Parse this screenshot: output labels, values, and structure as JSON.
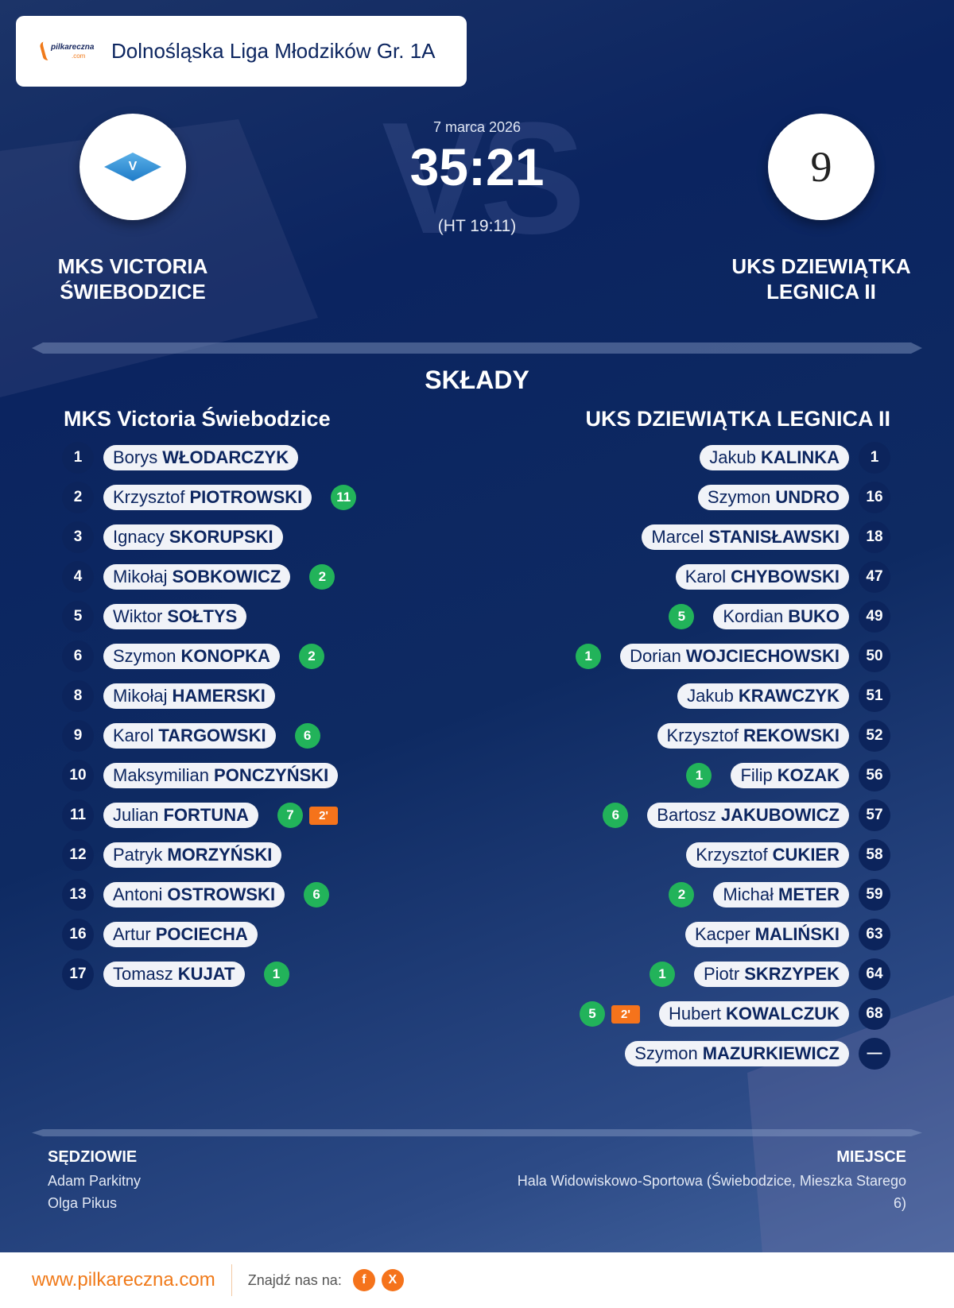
{
  "header": {
    "league": "Dolnośląska Liga Młodzików Gr. 1A",
    "logo_text": "pilkareczna",
    "logo_sub": ".com"
  },
  "match": {
    "date": "7 marca 2026",
    "score": "35:21",
    "halftime": "(HT 19:11)",
    "vs_watermark": "VS",
    "home": {
      "name_line1": "MKS VICTORIA",
      "name_line2": "ŚWIEBODZICE",
      "crest_letter": "V"
    },
    "away": {
      "name_line1": "UKS DZIEWIĄTKA",
      "name_line2": "LEGNICA II",
      "crest_letter": "9"
    }
  },
  "lineups": {
    "title": "SKŁADY",
    "home": {
      "team": "MKS Victoria  Świebodzice",
      "players": [
        {
          "num": "1",
          "first": "Borys",
          "last": "WŁODARCZYK"
        },
        {
          "num": "2",
          "first": "Krzysztof",
          "last": "PIOTROWSKI",
          "goals": "11"
        },
        {
          "num": "3",
          "first": "Ignacy",
          "last": "SKORUPSKI"
        },
        {
          "num": "4",
          "first": "Mikołaj",
          "last": "SOBKOWICZ",
          "goals": "2"
        },
        {
          "num": "5",
          "first": "Wiktor",
          "last": "SOŁTYS"
        },
        {
          "num": "6",
          "first": "Szymon",
          "last": "KONOPKA",
          "goals": "2"
        },
        {
          "num": "8",
          "first": "Mikołaj",
          "last": "HAMERSKI"
        },
        {
          "num": "9",
          "first": "Karol",
          "last": "TARGOWSKI",
          "goals": "6"
        },
        {
          "num": "10",
          "first": "Maksymilian",
          "last": "PONCZYŃSKI"
        },
        {
          "num": "11",
          "first": "Julian",
          "last": "FORTUNA",
          "goals": "7",
          "penalty": "2'"
        },
        {
          "num": "12",
          "first": "Patryk",
          "last": "MORZYŃSKI"
        },
        {
          "num": "13",
          "first": "Antoni",
          "last": "OSTROWSKI",
          "goals": "6"
        },
        {
          "num": "16",
          "first": "Artur",
          "last": "POCIECHA"
        },
        {
          "num": "17",
          "first": "Tomasz",
          "last": "KUJAT",
          "goals": "1"
        }
      ]
    },
    "away": {
      "team": "UKS DZIEWIĄTKA LEGNICA II",
      "players": [
        {
          "num": "1",
          "first": "Jakub",
          "last": "KALINKA"
        },
        {
          "num": "16",
          "first": "Szymon",
          "last": "UNDRO"
        },
        {
          "num": "18",
          "first": "Marcel",
          "last": "STANISŁAWSKI"
        },
        {
          "num": "47",
          "first": "Karol",
          "last": "CHYBOWSKI"
        },
        {
          "num": "49",
          "first": "Kordian",
          "last": "BUKO",
          "goals": "5"
        },
        {
          "num": "50",
          "first": "Dorian",
          "last": "WOJCIECHOWSKI",
          "goals": "1"
        },
        {
          "num": "51",
          "first": "Jakub",
          "last": "KRAWCZYK"
        },
        {
          "num": "52",
          "first": "Krzysztof",
          "last": "REKOWSKI"
        },
        {
          "num": "56",
          "first": "Filip",
          "last": "KOZAK",
          "goals": "1"
        },
        {
          "num": "57",
          "first": "Bartosz",
          "last": "JAKUBOWICZ",
          "goals": "6"
        },
        {
          "num": "58",
          "first": "Krzysztof",
          "last": "CUKIER"
        },
        {
          "num": "59",
          "first": "Michał",
          "last": "METER",
          "goals": "2"
        },
        {
          "num": "63",
          "first": "Kacper",
          "last": "MALIŃSKI"
        },
        {
          "num": "64",
          "first": "Piotr",
          "last": "SKRZYPEK",
          "goals": "1"
        },
        {
          "num": "68",
          "first": "Hubert",
          "last": "KOWALCZUK",
          "goals": "5",
          "penalty": "2'"
        },
        {
          "num": "—",
          "first": "Szymon",
          "last": "MAZURKIEWICZ"
        }
      ]
    }
  },
  "officials": {
    "label": "SĘDZIOWIE",
    "names": [
      "Adam Parkitny",
      "Olga Pikus"
    ]
  },
  "venue": {
    "label": "MIEJSCE",
    "text": "Hala Widowiskowo-Sportowa (Świebodzice, Mieszka Starego 6)"
  },
  "footer": {
    "site": "www.pilkareczna.com",
    "find_us": "Znajdź nas na:",
    "social": [
      {
        "icon": "facebook-icon",
        "glyph": "f"
      },
      {
        "icon": "x-icon",
        "glyph": "X"
      }
    ]
  },
  "colors": {
    "goal": "#22b35a",
    "penalty": "#f5731b",
    "accent": "#f07a1a",
    "navy": "#0c245c"
  }
}
